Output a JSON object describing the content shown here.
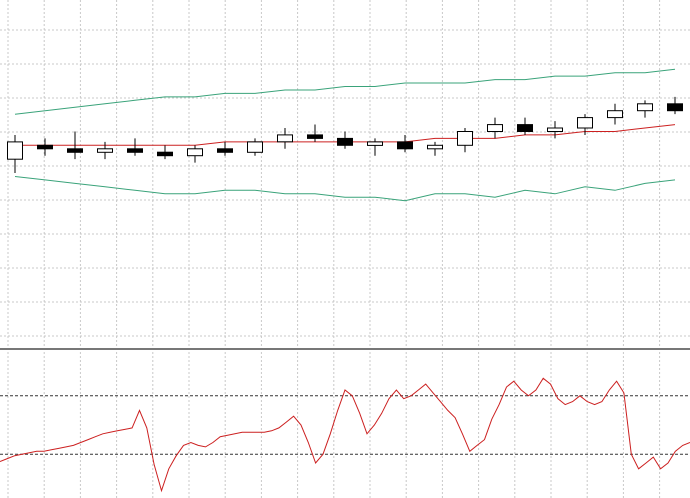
{
  "chart_data": [
    {
      "type": "candlestick",
      "title": "",
      "xlabel": "",
      "ylabel": "",
      "grid": true,
      "ylim": [
        0,
        100
      ],
      "colors": {
        "bull_body": "#ffffff",
        "bear_body": "#000000",
        "wick": "#000000",
        "bollinger_outer": "#3aa37a",
        "bollinger_inner": "#cc2020",
        "grid": "#c8c8c8"
      },
      "candles": [
        {
          "o": 54,
          "h": 61,
          "l": 50,
          "c": 59
        },
        {
          "o": 58,
          "h": 60,
          "l": 55,
          "c": 57
        },
        {
          "o": 57,
          "h": 62,
          "l": 54,
          "c": 56
        },
        {
          "o": 56,
          "h": 59,
          "l": 54,
          "c": 57
        },
        {
          "o": 57,
          "h": 60,
          "l": 55,
          "c": 56
        },
        {
          "o": 56,
          "h": 58,
          "l": 54,
          "c": 55
        },
        {
          "o": 55,
          "h": 58,
          "l": 53,
          "c": 57
        },
        {
          "o": 57,
          "h": 59,
          "l": 55,
          "c": 56
        },
        {
          "o": 56,
          "h": 60,
          "l": 55,
          "c": 59
        },
        {
          "o": 59,
          "h": 63,
          "l": 57,
          "c": 61
        },
        {
          "o": 61,
          "h": 64,
          "l": 59,
          "c": 60
        },
        {
          "o": 60,
          "h": 62,
          "l": 57,
          "c": 58
        },
        {
          "o": 58,
          "h": 60,
          "l": 55,
          "c": 59
        },
        {
          "o": 59,
          "h": 61,
          "l": 56,
          "c": 57
        },
        {
          "o": 57,
          "h": 59,
          "l": 55,
          "c": 58
        },
        {
          "o": 58,
          "h": 63,
          "l": 56,
          "c": 62
        },
        {
          "o": 62,
          "h": 66,
          "l": 60,
          "c": 64
        },
        {
          "o": 64,
          "h": 66,
          "l": 61,
          "c": 62
        },
        {
          "o": 62,
          "h": 65,
          "l": 60,
          "c": 63
        },
        {
          "o": 63,
          "h": 67,
          "l": 61,
          "c": 66
        },
        {
          "o": 66,
          "h": 70,
          "l": 64,
          "c": 68
        },
        {
          "o": 68,
          "h": 71,
          "l": 66,
          "c": 70
        },
        {
          "o": 70,
          "h": 72,
          "l": 67,
          "c": 68
        }
      ],
      "bollinger": {
        "upper": [
          67,
          68,
          69,
          70,
          71,
          72,
          72,
          73,
          73,
          74,
          74,
          75,
          75,
          76,
          76,
          76,
          77,
          77,
          78,
          78,
          79,
          79,
          80
        ],
        "middle": [
          58,
          58,
          58,
          58,
          58,
          58,
          58,
          59,
          59,
          59,
          59,
          59,
          59,
          59,
          60,
          60,
          60,
          61,
          61,
          62,
          62,
          63,
          64
        ],
        "lower": [
          49,
          48,
          47,
          46,
          45,
          44,
          44,
          45,
          45,
          44,
          44,
          43,
          43,
          42,
          44,
          44,
          43,
          45,
          44,
          46,
          45,
          47,
          48
        ]
      }
    },
    {
      "type": "line",
      "title": "",
      "xlabel": "",
      "ylabel": "",
      "grid": true,
      "ylim": [
        0,
        100
      ],
      "levels": [
        70,
        30
      ],
      "series": [
        {
          "color": "#cc2020",
          "values": [
            25,
            27,
            29,
            30,
            31,
            32,
            32,
            33,
            34,
            35,
            36,
            38,
            40,
            42,
            44,
            45,
            46,
            47,
            48,
            60,
            48,
            23,
            5,
            20,
            29,
            36,
            38,
            36,
            35,
            38,
            42,
            43,
            44,
            45,
            45,
            45,
            45,
            46,
            48,
            52,
            56,
            50,
            38,
            24,
            30,
            44,
            60,
            74,
            70,
            58,
            44,
            50,
            58,
            68,
            74,
            68,
            70,
            74,
            78,
            72,
            66,
            60,
            55,
            44,
            32,
            36,
            40,
            54,
            64,
            76,
            80,
            74,
            70,
            74,
            82,
            78,
            68,
            64,
            66,
            70,
            66,
            64,
            66,
            74,
            80,
            72,
            30,
            20,
            24,
            28,
            20,
            24,
            32,
            36,
            38
          ]
        }
      ]
    }
  ]
}
